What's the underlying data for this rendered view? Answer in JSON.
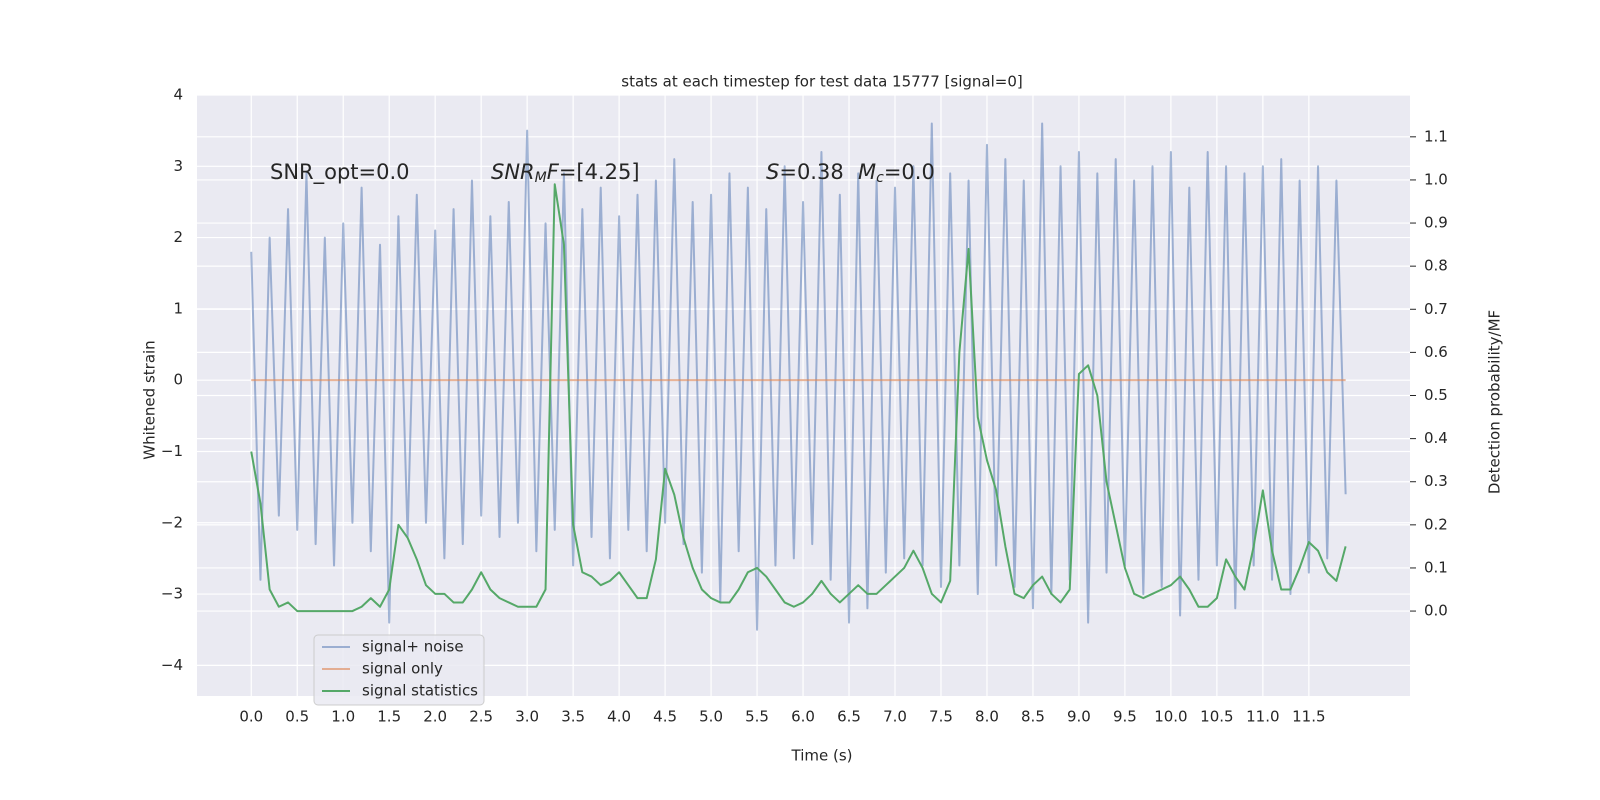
{
  "chart_data": {
    "type": "line",
    "title": "stats at each timestep for test data 15777 [signal=0]",
    "xlabel": "Time (s)",
    "ylabel": "Whitened strain",
    "y2label": "Detection probability/MF",
    "annotations": [
      [
        {
          "text": "SNR_opt=0.0",
          "italic": false,
          "sub": false
        }
      ],
      [
        {
          "text": "SNR",
          "italic": true,
          "sub": false
        },
        {
          "text": "M",
          "italic": true,
          "sub": true
        },
        {
          "text": "F",
          "italic": true,
          "sub": false
        },
        {
          "text": "=[4.25]",
          "italic": false,
          "sub": false
        }
      ],
      [
        {
          "text": "S",
          "italic": true,
          "sub": false
        },
        {
          "text": "=0.38",
          "italic": false,
          "sub": false
        }
      ],
      [
        {
          "text": "M",
          "italic": true,
          "sub": false
        },
        {
          "text": "c",
          "italic": true,
          "sub": true
        },
        {
          "text": "=0.0",
          "italic": false,
          "sub": false
        }
      ]
    ],
    "x": [
      0,
      0.1,
      0.2,
      0.3,
      0.4,
      0.5,
      0.6,
      0.7,
      0.8,
      0.9,
      1,
      1.1,
      1.2,
      1.3,
      1.4,
      1.5,
      1.6,
      1.7,
      1.8,
      1.9,
      2,
      2.1,
      2.2,
      2.3,
      2.4,
      2.5,
      2.6,
      2.7,
      2.8,
      2.9,
      3,
      3.1,
      3.2,
      3.3,
      3.4,
      3.5,
      3.6,
      3.7,
      3.8,
      3.9,
      4,
      4.1,
      4.2,
      4.3,
      4.4,
      4.5,
      4.6,
      4.7,
      4.8,
      4.9,
      5,
      5.1,
      5.2,
      5.3,
      5.4,
      5.5,
      5.6,
      5.7,
      5.8,
      5.9,
      6,
      6.1,
      6.2,
      6.3,
      6.4,
      6.5,
      6.6,
      6.7,
      6.8,
      6.9,
      7,
      7.1,
      7.2,
      7.3,
      7.4,
      7.5,
      7.6,
      7.7,
      7.8,
      7.9,
      8,
      8.1,
      8.2,
      8.3,
      8.4,
      8.5,
      8.6,
      8.7,
      8.8,
      8.9,
      9,
      9.1,
      9.2,
      9.3,
      9.4,
      9.5,
      9.6,
      9.7,
      9.8,
      9.9,
      10,
      10.1,
      10.2,
      10.3,
      10.4,
      10.5,
      10.6,
      10.7,
      10.8,
      10.9,
      11,
      11.1,
      11.2,
      11.3,
      11.4,
      11.5,
      11.6,
      11.7,
      11.8,
      11.9
    ],
    "series": [
      {
        "name": "signal+ noise",
        "color": "#4c72b0",
        "alpha": 0.5,
        "axis": "y",
        "values": [
          1.8,
          -2.8,
          2.0,
          -1.9,
          2.4,
          -2.1,
          2.9,
          -2.3,
          2.0,
          -2.6,
          2.2,
          -2.0,
          2.7,
          -2.4,
          1.9,
          -3.4,
          2.3,
          -2.2,
          2.6,
          -2.0,
          2.1,
          -2.5,
          2.4,
          -2.3,
          2.8,
          -1.9,
          2.3,
          -2.2,
          2.5,
          -2.0,
          3.5,
          -2.4,
          2.2,
          -2.1,
          2.9,
          -2.6,
          2.4,
          -2.2,
          2.7,
          -2.5,
          2.3,
          -2.1,
          2.6,
          -2.4,
          2.8,
          -2.0,
          3.1,
          -2.3,
          2.5,
          -2.7,
          2.6,
          -3.1,
          2.9,
          -2.4,
          2.7,
          -3.5,
          2.4,
          -2.6,
          3.0,
          -2.5,
          2.5,
          -2.3,
          3.2,
          -2.8,
          2.6,
          -3.4,
          2.9,
          -3.2,
          2.8,
          -2.7,
          2.7,
          -2.5,
          3.0,
          -2.6,
          3.6,
          -2.9,
          2.9,
          -2.6,
          2.8,
          -3.0,
          3.3,
          -2.6,
          3.1,
          -2.9,
          2.8,
          -3.2,
          3.6,
          -3.0,
          3.0,
          -2.8,
          3.2,
          -3.4,
          2.9,
          -2.7,
          3.1,
          -2.6,
          2.8,
          -3.0,
          3.0,
          -2.9,
          3.2,
          -3.3,
          2.7,
          -2.8,
          3.2,
          -2.6,
          3.0,
          -3.2,
          2.9,
          -2.6,
          3.0,
          -2.8,
          3.1,
          -3.0,
          2.8,
          -2.7,
          3.0,
          -2.5,
          2.8,
          -1.6
        ]
      },
      {
        "name": "signal only",
        "color": "#dd8452",
        "alpha": 0.6,
        "axis": "y",
        "values": [
          0,
          0,
          0,
          0,
          0,
          0,
          0,
          0,
          0,
          0,
          0,
          0,
          0,
          0,
          0,
          0,
          0,
          0,
          0,
          0,
          0,
          0,
          0,
          0,
          0,
          0,
          0,
          0,
          0,
          0,
          0,
          0,
          0,
          0,
          0,
          0,
          0,
          0,
          0,
          0,
          0,
          0,
          0,
          0,
          0,
          0,
          0,
          0,
          0,
          0,
          0,
          0,
          0,
          0,
          0,
          0,
          0,
          0,
          0,
          0,
          0,
          0,
          0,
          0,
          0,
          0,
          0,
          0,
          0,
          0,
          0,
          0,
          0,
          0,
          0,
          0,
          0,
          0,
          0,
          0,
          0,
          0,
          0,
          0,
          0,
          0,
          0,
          0,
          0,
          0,
          0,
          0,
          0,
          0,
          0,
          0,
          0,
          0,
          0,
          0,
          0,
          0,
          0,
          0,
          0,
          0,
          0,
          0,
          0,
          0,
          0,
          0,
          0,
          0,
          0,
          0,
          0,
          0,
          0,
          0
        ]
      },
      {
        "name": "signal statistics",
        "color": "#55a868",
        "alpha": 1,
        "axis": "y2",
        "values": [
          0.37,
          0.25,
          0.05,
          0.01,
          0.02,
          0.0,
          0.0,
          0.0,
          0.0,
          0.0,
          0.0,
          0.0,
          0.01,
          0.03,
          0.01,
          0.05,
          0.2,
          0.17,
          0.12,
          0.06,
          0.04,
          0.04,
          0.02,
          0.02,
          0.05,
          0.09,
          0.05,
          0.03,
          0.02,
          0.01,
          0.01,
          0.01,
          0.05,
          0.99,
          0.85,
          0.2,
          0.09,
          0.08,
          0.06,
          0.07,
          0.09,
          0.06,
          0.03,
          0.03,
          0.12,
          0.33,
          0.27,
          0.17,
          0.1,
          0.05,
          0.03,
          0.02,
          0.02,
          0.05,
          0.09,
          0.1,
          0.08,
          0.05,
          0.02,
          0.01,
          0.02,
          0.04,
          0.07,
          0.04,
          0.02,
          0.04,
          0.06,
          0.04,
          0.04,
          0.06,
          0.08,
          0.1,
          0.14,
          0.1,
          0.04,
          0.02,
          0.07,
          0.6,
          0.84,
          0.45,
          0.35,
          0.28,
          0.15,
          0.04,
          0.03,
          0.06,
          0.08,
          0.04,
          0.02,
          0.05,
          0.55,
          0.57,
          0.5,
          0.3,
          0.2,
          0.1,
          0.04,
          0.03,
          0.04,
          0.05,
          0.06,
          0.08,
          0.05,
          0.01,
          0.01,
          0.03,
          0.12,
          0.08,
          0.05,
          0.15,
          0.28,
          0.14,
          0.05,
          0.05,
          0.1,
          0.16,
          0.14,
          0.09,
          0.07,
          0.15
        ]
      }
    ],
    "xlim": [
      -0.59,
      12.6
    ],
    "ylim": [
      -4.43,
      4
    ],
    "y2lim": [
      -0.197,
      1.197
    ],
    "xticks": [
      {
        "value": 0,
        "label": "0.0"
      },
      0.5,
      {
        "value": 1,
        "label": "1.0"
      },
      1.5,
      {
        "value": 2,
        "label": "2.0"
      },
      2.5,
      {
        "value": 3,
        "label": "3.0"
      },
      3.5,
      {
        "value": 4,
        "label": "4.0"
      },
      4.5,
      {
        "value": 5,
        "label": "5.0"
      },
      5.5,
      {
        "value": 6,
        "label": "6.0"
      },
      6.5,
      {
        "value": 7,
        "label": "7.0"
      },
      7.5,
      {
        "value": 8,
        "label": "8.0"
      },
      8.5,
      {
        "value": 9,
        "label": "9.0"
      },
      9.5,
      {
        "value": 10,
        "label": "10.0"
      },
      10.5,
      {
        "value": 11,
        "label": "11.0"
      },
      11.5
    ],
    "yticks": [
      {
        "value": -4,
        "label": "−4"
      },
      {
        "value": -3,
        "label": "−3"
      },
      {
        "value": -2,
        "label": "−2"
      },
      {
        "value": -1,
        "label": "−1"
      },
      0,
      1,
      2,
      3,
      4
    ],
    "y2ticks": [
      {
        "value": 0,
        "label": "0.0"
      },
      0.1,
      0.2,
      0.3,
      0.4,
      0.5,
      0.6,
      0.7,
      0.8,
      0.9,
      {
        "value": 1,
        "label": "1.0"
      },
      1.1
    ],
    "grid": true,
    "legend": "lower left",
    "background": "#eaeaf2"
  }
}
